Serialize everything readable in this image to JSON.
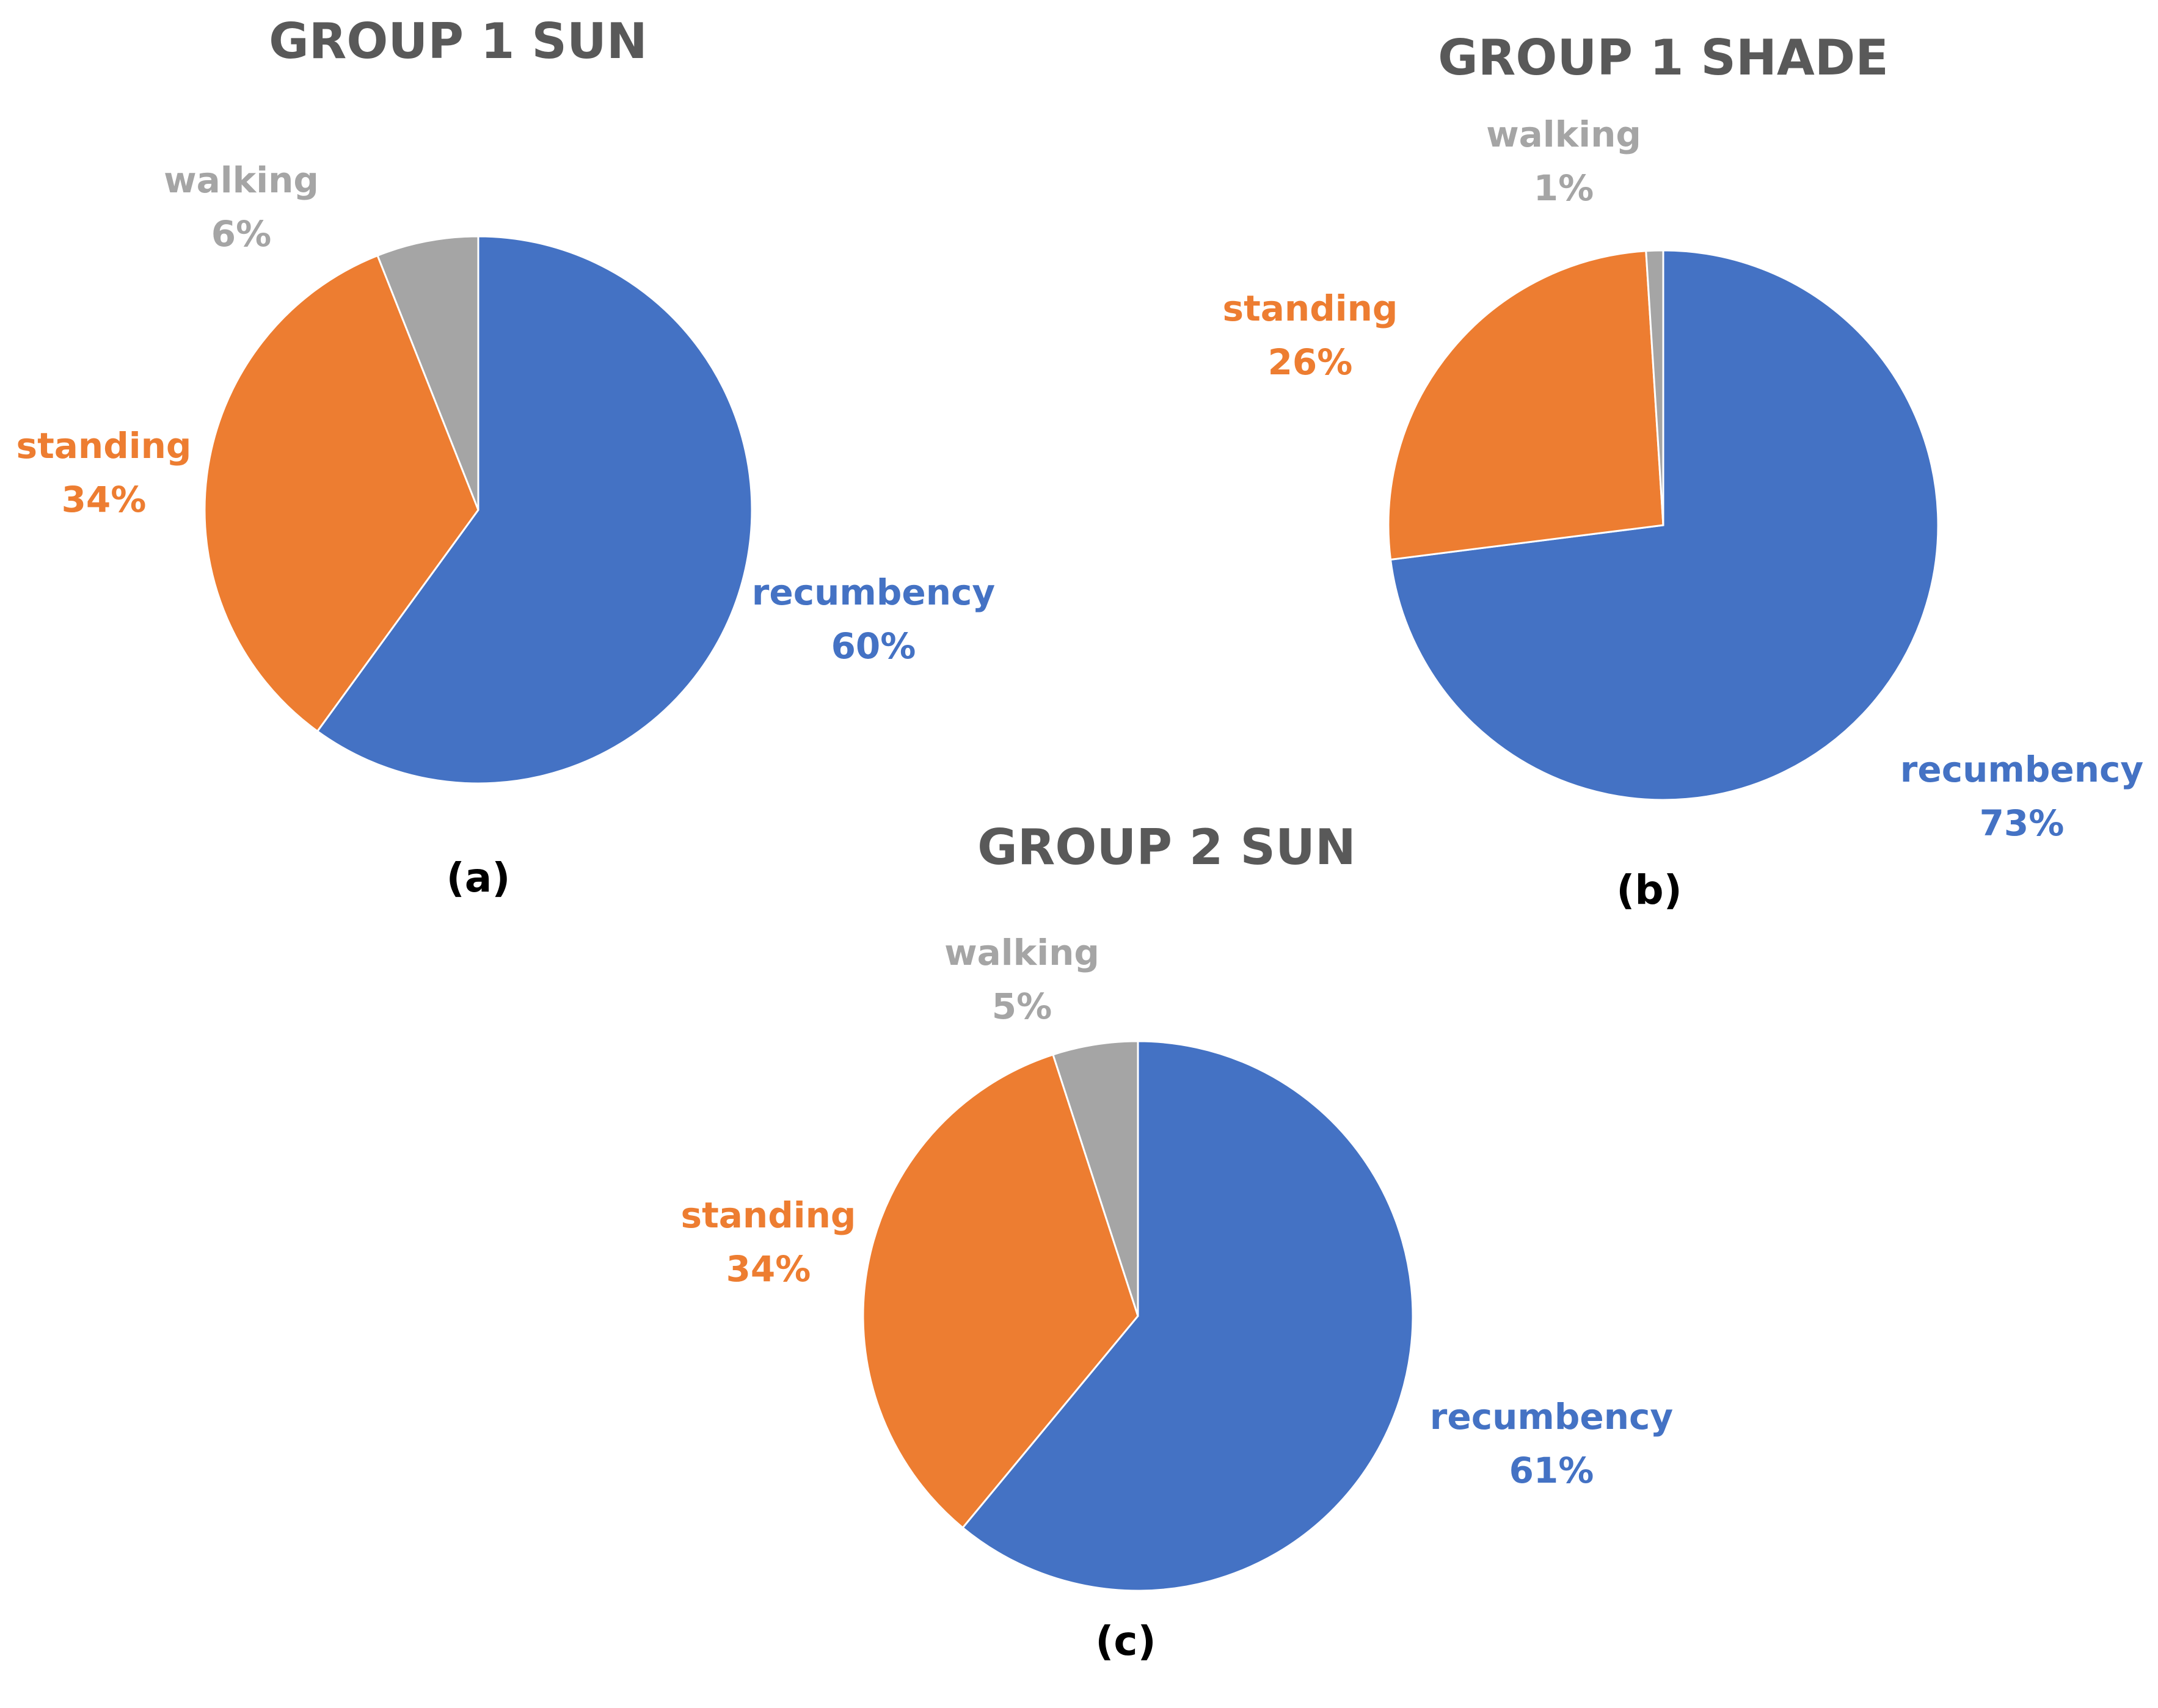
{
  "colors": {
    "recumbency": "#4472C4",
    "standing": "#ED7D31",
    "walking": "#A5A5A5",
    "title": "#595959"
  },
  "chart_data": [
    {
      "type": "pie",
      "title": "GROUP 1 SUN",
      "panel_label": "(a)",
      "slices": [
        {
          "name": "recumbency",
          "value": 60,
          "label": "60%"
        },
        {
          "name": "standing",
          "value": 34,
          "label": "34%"
        },
        {
          "name": "walking",
          "value": 6,
          "label": "6%"
        }
      ]
    },
    {
      "type": "pie",
      "title": "GROUP 1 SHADE",
      "panel_label": "(b)",
      "slices": [
        {
          "name": "recumbency",
          "value": 73,
          "label": "73%"
        },
        {
          "name": "standing",
          "value": 26,
          "label": "26%"
        },
        {
          "name": "walking",
          "value": 1,
          "label": "1%"
        }
      ]
    },
    {
      "type": "pie",
      "title": "GROUP 2 SUN",
      "panel_label": "(c)",
      "slices": [
        {
          "name": "recumbency",
          "value": 61,
          "label": "61%"
        },
        {
          "name": "standing",
          "value": 34,
          "label": "34%"
        },
        {
          "name": "walking",
          "value": 5,
          "label": "5%"
        }
      ]
    }
  ]
}
